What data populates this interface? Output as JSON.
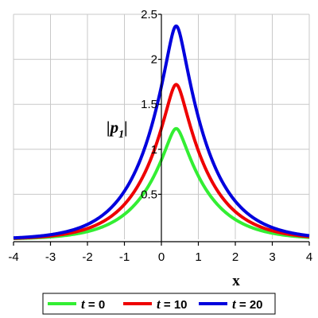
{
  "chart_data": {
    "type": "line",
    "xlabel": "x",
    "ylabel": "|p1|",
    "ylabel_main": "p",
    "ylabel_sub": "1",
    "xlim": [
      -4,
      4
    ],
    "ylim": [
      0,
      2.5
    ],
    "x_ticks": [
      -4,
      -3,
      -2,
      -1,
      0,
      1,
      2,
      3,
      4
    ],
    "x_tick_labels": [
      "-4",
      "-3",
      "-2",
      "-1",
      "0",
      "1",
      "2",
      "3",
      "4"
    ],
    "y_ticks": [
      0.5,
      1,
      1.5,
      2,
      2.5
    ],
    "y_tick_labels": [
      "0.5",
      "1",
      "1.5",
      "2",
      "2.5"
    ],
    "grid": true,
    "legend_position": "bottom",
    "peak_x": 0.4,
    "series": [
      {
        "name": "t = 0",
        "var": "t",
        "value_label": "0",
        "color": "#33ee33",
        "peak": 1.23,
        "width": 0.85
      },
      {
        "name": "t = 10",
        "var": "t",
        "value_label": "10",
        "color": "#ee0000",
        "peak": 1.72,
        "width": 0.85
      },
      {
        "name": "t = 20",
        "var": "t",
        "value_label": "20",
        "color": "#0000dd",
        "peak": 2.37,
        "width": 0.85
      }
    ]
  }
}
